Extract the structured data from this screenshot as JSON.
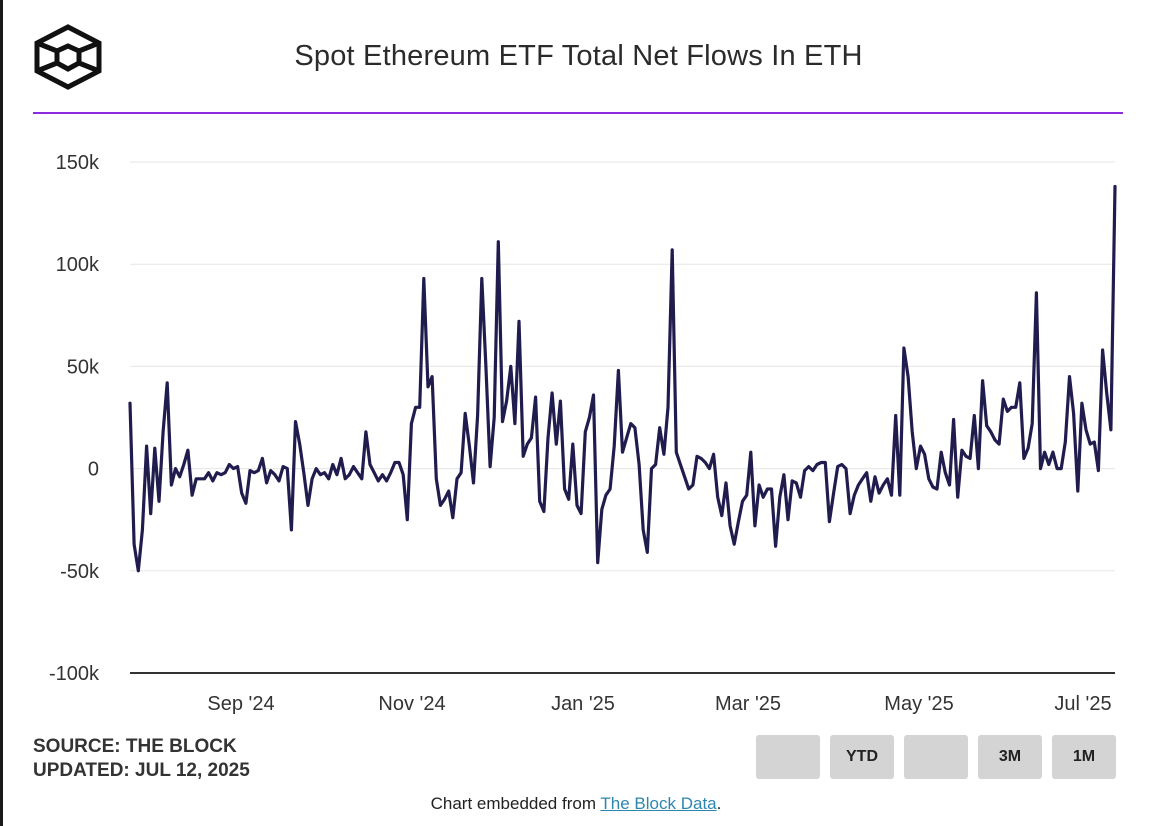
{
  "header": {
    "title": "Spot Ethereum ETF Total Net Flows In ETH",
    "logo_icon": "the-block-cube-logo-icon"
  },
  "footer": {
    "source_line": "SOURCE: THE BLOCK",
    "updated_line": "UPDATED: JUL 12, 2025",
    "embed_prefix": "Chart embedded from ",
    "embed_link": "The Block Data",
    "embed_suffix": "."
  },
  "range_buttons": [
    "",
    "YTD",
    "",
    "3M",
    "1M"
  ],
  "colors": {
    "line": "#211c4e",
    "accent_rule": "#8a2be2",
    "grid": "#e6e6e6",
    "link": "#2e86b0",
    "button_bg": "#d4d4d4"
  },
  "chart_data": {
    "type": "line",
    "title": "Spot Ethereum ETF Total Net Flows In ETH",
    "xlabel": "",
    "ylabel": "",
    "ylim": [
      -100000,
      150000
    ],
    "yticks": [
      150000,
      100000,
      50000,
      0,
      -50000,
      -100000
    ],
    "ytick_labels": [
      "150k",
      "100k",
      "50k",
      "0",
      "-50k",
      "-100k"
    ],
    "xtick_labels": [
      "Sep '24",
      "Nov '24",
      "Jan '25",
      "Mar '25",
      "May '25",
      "Jul '25"
    ],
    "grid": true,
    "series": [
      {
        "values": [
          32000,
          -37000,
          -50000,
          -30000,
          11000,
          -22000,
          10000,
          -16000,
          18000,
          42000,
          -8000,
          0,
          -4000,
          2000,
          9000,
          -13000,
          -5000,
          -5000,
          -5000,
          -2000,
          -6000,
          -2000,
          -3000,
          -2000,
          2000,
          0,
          1000,
          -12000,
          -17000,
          -1000,
          -2000,
          -1000,
          5000,
          -7000,
          -1000,
          -3000,
          -6000,
          1000,
          0,
          -30000,
          23000,
          12000,
          -2000,
          -18000,
          -5000,
          0,
          -3000,
          -2000,
          -5000,
          2000,
          -3000,
          5000,
          -5000,
          -3000,
          1000,
          -2000,
          -5000,
          18000,
          2000,
          -2000,
          -6000,
          -3000,
          -6000,
          -2000,
          3000,
          3000,
          -3000,
          -25000,
          22000,
          30000,
          30000,
          93000,
          40000,
          45000,
          -5000,
          -18000,
          -15000,
          -11000,
          -24000,
          -5000,
          -2000,
          27000,
          11000,
          -7000,
          26000,
          93000,
          50000,
          1000,
          25000,
          111000,
          23000,
          33000,
          50000,
          22000,
          72000,
          6000,
          12000,
          15000,
          35000,
          -16000,
          -21000,
          15000,
          37000,
          12000,
          33000,
          -10000,
          -15000,
          12000,
          -18000,
          -22000,
          18000,
          25000,
          36000,
          -46000,
          -20000,
          -13000,
          -10000,
          11000,
          48000,
          8000,
          15000,
          22000,
          20000,
          2000,
          -30000,
          -41000,
          0,
          2000,
          20000,
          7000,
          30000,
          107000,
          8000,
          2000,
          -4000,
          -10000,
          -8000,
          6000,
          5000,
          3000,
          0,
          7000,
          -14000,
          -23000,
          -7000,
          -28000,
          -37000,
          -26000,
          -16000,
          -13000,
          8000,
          -28000,
          -8000,
          -14000,
          -10000,
          -10000,
          -38000,
          -14000,
          -3000,
          -25000,
          -6000,
          -7000,
          -14000,
          -1000,
          1000,
          -1000,
          2000,
          3000,
          3000,
          -26000,
          -12000,
          1000,
          2000,
          0,
          -22000,
          -13000,
          -8000,
          -5000,
          -2000,
          -16000,
          -4000,
          -12000,
          -8000,
          -5000,
          -13000,
          26000,
          -13000,
          59000,
          45000,
          18000,
          0,
          11000,
          7000,
          -5000,
          -9000,
          -10000,
          8000,
          -2000,
          -8000,
          24000,
          -14000,
          9000,
          6000,
          5000,
          26000,
          0,
          43000,
          21000,
          18000,
          14000,
          12000,
          34000,
          28000,
          30000,
          30000,
          42000,
          5000,
          10000,
          22000,
          86000,
          0,
          8000,
          2000,
          8000,
          0,
          0,
          13000,
          45000,
          27000,
          -11000,
          32000,
          19000,
          12000,
          13000,
          -1000,
          58000,
          37000,
          19000,
          138000
        ]
      }
    ]
  }
}
